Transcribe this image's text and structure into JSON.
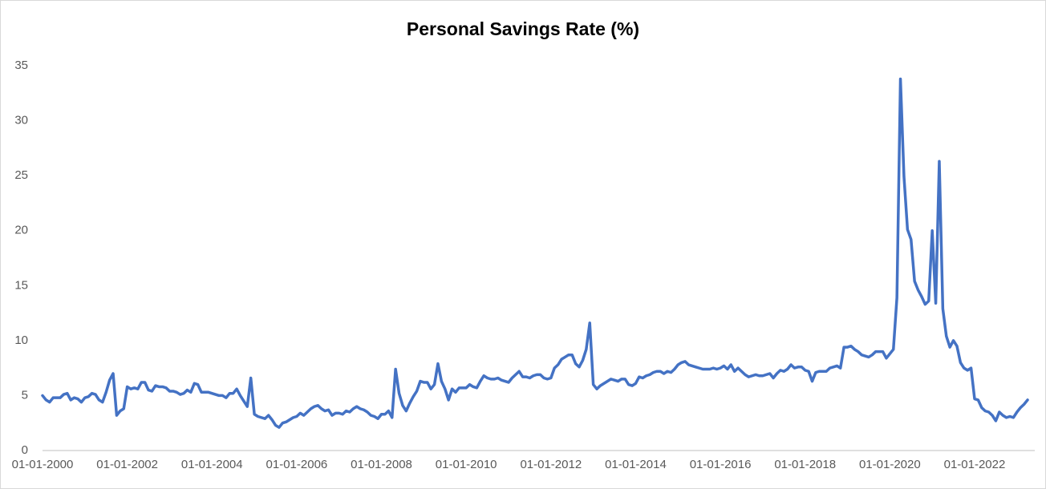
{
  "chart_data": {
    "type": "line",
    "title": "Personal Savings Rate (%)",
    "categories": [
      "01-01-2000",
      null,
      null,
      null,
      null,
      null,
      null,
      null,
      null,
      null,
      null,
      null,
      null,
      null,
      null,
      null,
      null,
      null,
      null,
      null,
      null,
      null,
      null,
      null,
      "01-01-2002",
      null,
      null,
      null,
      null,
      null,
      null,
      null,
      null,
      null,
      null,
      null,
      null,
      null,
      null,
      null,
      null,
      null,
      null,
      null,
      null,
      null,
      null,
      null,
      "01-01-2004",
      null,
      null,
      null,
      null,
      null,
      null,
      null,
      null,
      null,
      null,
      null,
      null,
      null,
      null,
      null,
      null,
      null,
      null,
      null,
      null,
      null,
      null,
      null,
      "01-01-2006",
      null,
      null,
      null,
      null,
      null,
      null,
      null,
      null,
      null,
      null,
      null,
      null,
      null,
      null,
      null,
      null,
      null,
      null,
      null,
      null,
      null,
      null,
      null,
      "01-01-2008",
      null,
      null,
      null,
      null,
      null,
      null,
      null,
      null,
      null,
      null,
      null,
      null,
      null,
      null,
      null,
      null,
      null,
      null,
      null,
      null,
      null,
      null,
      null,
      "01-01-2010",
      null,
      null,
      null,
      null,
      null,
      null,
      null,
      null,
      null,
      null,
      null,
      null,
      null,
      null,
      null,
      null,
      null,
      null,
      null,
      null,
      null,
      null,
      null,
      "01-01-2012",
      null,
      null,
      null,
      null,
      null,
      null,
      null,
      null,
      null,
      null,
      null,
      null,
      null,
      null,
      null,
      null,
      null,
      null,
      null,
      null,
      null,
      null,
      null,
      "01-01-2014",
      null,
      null,
      null,
      null,
      null,
      null,
      null,
      null,
      null,
      null,
      null,
      null,
      null,
      null,
      null,
      null,
      null,
      null,
      null,
      null,
      null,
      null,
      null,
      "01-01-2016",
      null,
      null,
      null,
      null,
      null,
      null,
      null,
      null,
      null,
      null,
      null,
      null,
      null,
      null,
      null,
      null,
      null,
      null,
      null,
      null,
      null,
      null,
      null,
      "01-01-2018",
      null,
      null,
      null,
      null,
      null,
      null,
      null,
      null,
      null,
      null,
      null,
      null,
      null,
      null,
      null,
      null,
      null,
      null,
      null,
      null,
      null,
      null,
      null,
      "01-01-2020",
      null,
      null,
      null,
      null,
      null,
      null,
      null,
      null,
      null,
      null,
      null,
      null,
      null,
      null,
      null,
      null,
      null,
      null,
      null,
      null,
      null,
      null,
      null,
      "01-01-2022",
      null,
      null,
      null,
      null,
      null,
      null,
      null,
      null,
      null,
      null,
      null,
      null,
      null,
      null,
      null
    ],
    "color": "#4472c4",
    "values": [
      5.0,
      4.6,
      4.4,
      4.8,
      4.8,
      4.8,
      5.1,
      5.2,
      4.6,
      4.8,
      4.7,
      4.4,
      4.8,
      4.9,
      5.2,
      5.1,
      4.6,
      4.4,
      5.3,
      6.4,
      7.0,
      3.2,
      3.6,
      3.8,
      5.8,
      5.6,
      5.7,
      5.6,
      6.2,
      6.2,
      5.5,
      5.4,
      5.9,
      5.8,
      5.8,
      5.7,
      5.4,
      5.4,
      5.3,
      5.1,
      5.2,
      5.5,
      5.3,
      6.1,
      6.0,
      5.3,
      5.3,
      5.3,
      5.2,
      5.1,
      5.0,
      5.0,
      4.8,
      5.2,
      5.2,
      5.6,
      5.0,
      4.5,
      4.0,
      6.6,
      3.3,
      3.1,
      3.0,
      2.9,
      3.2,
      2.8,
      2.3,
      2.1,
      2.5,
      2.6,
      2.8,
      3.0,
      3.1,
      3.4,
      3.2,
      3.5,
      3.8,
      4.0,
      4.1,
      3.8,
      3.6,
      3.7,
      3.2,
      3.4,
      3.4,
      3.3,
      3.6,
      3.5,
      3.8,
      4.0,
      3.8,
      3.7,
      3.5,
      3.2,
      3.1,
      2.9,
      3.3,
      3.3,
      3.6,
      3.0,
      7.4,
      5.2,
      4.1,
      3.6,
      4.3,
      4.9,
      5.4,
      6.3,
      6.2,
      6.2,
      5.6,
      6.0,
      7.9,
      6.3,
      5.6,
      4.6,
      5.6,
      5.3,
      5.7,
      5.7,
      5.7,
      6.0,
      5.8,
      5.7,
      6.3,
      6.8,
      6.6,
      6.5,
      6.5,
      6.6,
      6.4,
      6.3,
      6.2,
      6.6,
      6.9,
      7.2,
      6.7,
      6.7,
      6.6,
      6.8,
      6.9,
      6.9,
      6.6,
      6.5,
      6.6,
      7.5,
      7.8,
      8.3,
      8.5,
      8.7,
      8.7,
      7.9,
      7.6,
      8.2,
      9.2,
      11.6,
      6.0,
      5.6,
      5.9,
      6.1,
      6.3,
      6.5,
      6.4,
      6.3,
      6.5,
      6.5,
      6.0,
      5.9,
      6.1,
      6.7,
      6.6,
      6.8,
      6.9,
      7.1,
      7.2,
      7.2,
      7.0,
      7.2,
      7.1,
      7.4,
      7.8,
      8.0,
      8.1,
      7.8,
      7.7,
      7.6,
      7.5,
      7.4,
      7.4,
      7.4,
      7.5,
      7.4,
      7.5,
      7.7,
      7.4,
      7.8,
      7.2,
      7.5,
      7.2,
      6.9,
      6.7,
      6.8,
      6.9,
      6.8,
      6.8,
      6.9,
      7.0,
      6.6,
      7.0,
      7.3,
      7.2,
      7.4,
      7.8,
      7.5,
      7.6,
      7.6,
      7.3,
      7.2,
      6.3,
      7.1,
      7.2,
      7.2,
      7.2,
      7.5,
      7.6,
      7.7,
      7.5,
      9.4,
      9.4,
      9.5,
      9.2,
      9.0,
      8.7,
      8.6,
      8.5,
      8.7,
      9.0,
      9.0,
      9.0,
      8.4,
      8.8,
      9.2,
      13.9,
      33.8,
      24.9,
      20.1,
      19.2,
      15.4,
      14.6,
      14.0,
      13.3,
      13.6,
      20.0,
      13.4,
      26.3,
      12.9,
      10.4,
      9.4,
      10.0,
      9.5,
      8.0,
      7.5,
      7.3,
      7.5,
      4.7,
      4.6,
      3.9,
      3.6,
      3.5,
      3.2,
      2.7,
      3.5,
      3.2,
      3.0,
      3.1,
      3.0,
      3.5,
      3.9,
      4.2,
      4.6
    ],
    "ylim": [
      0,
      35
    ],
    "yticks": [
      0,
      5,
      10,
      15,
      20,
      25,
      30,
      35
    ],
    "grid": false
  }
}
